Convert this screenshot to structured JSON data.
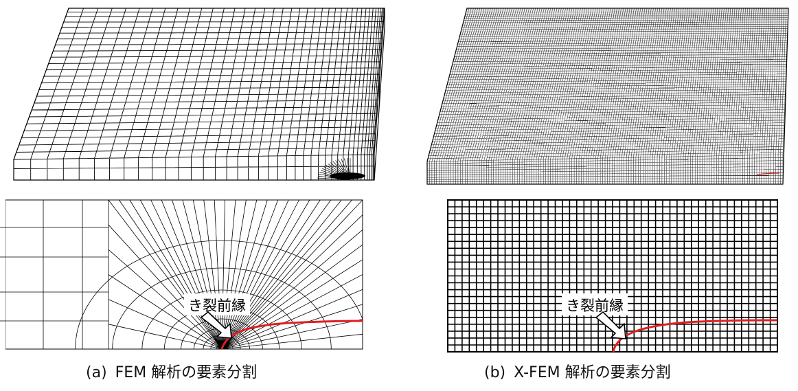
{
  "figures": [
    {
      "id": "a",
      "caption_tag": "(a)",
      "caption": "FEM 解析の要素分割",
      "annotation": "き裂前縁",
      "mesh": "structured-refined-around-crack-front"
    },
    {
      "id": "b",
      "caption_tag": "(b)",
      "caption": "X-FEM 解析の要素分割",
      "annotation": "き裂前縁",
      "mesh": "uniform-fine"
    }
  ],
  "colors": {
    "mesh_line": "#000000",
    "crack_front": "#e02020",
    "arrow_fill": "#ffffff"
  }
}
